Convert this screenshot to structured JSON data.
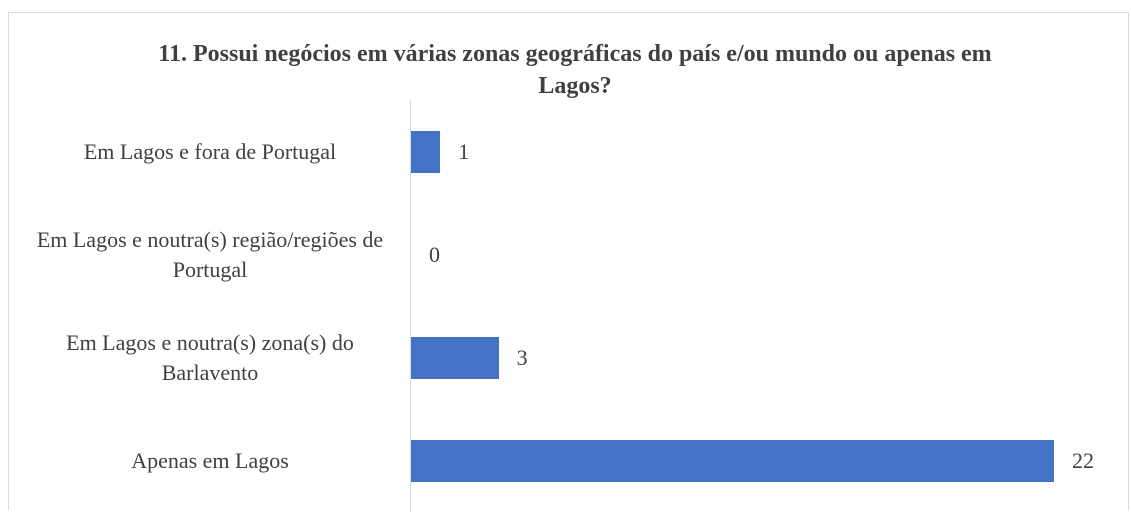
{
  "chart_data": {
    "type": "bar",
    "orientation": "horizontal",
    "title": "11. Possui negócios em várias zonas geográficas do país e/ou mundo ou apenas em Lagos?",
    "categories": [
      "Em Lagos e fora de Portugal",
      "Em Lagos e noutra(s) região/regiões de Portugal",
      "Em Lagos e noutra(s) zona(s) do Barlavento",
      "Apenas em Lagos"
    ],
    "values": [
      1,
      0,
      3,
      22
    ],
    "color": "#4472c4",
    "xlim": [
      0,
      22
    ]
  }
}
